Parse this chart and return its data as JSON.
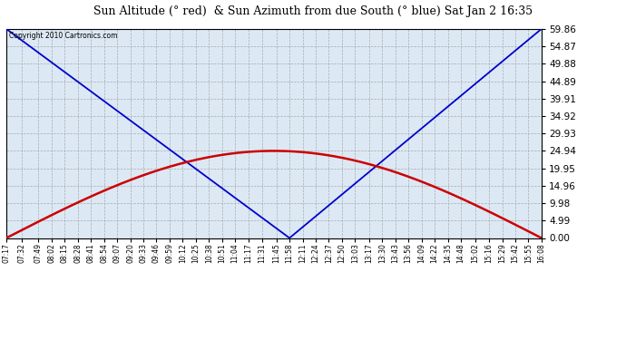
{
  "title": "Sun Altitude (° red)  & Sun Azimuth from due South (° blue) Sat Jan 2 16:35",
  "copyright_text": "Copyright 2010 Cartronics.com",
  "yticks": [
    0.0,
    4.99,
    9.98,
    14.96,
    19.95,
    24.94,
    29.93,
    34.92,
    39.91,
    44.89,
    49.88,
    54.87,
    59.86
  ],
  "ymin": 0.0,
  "ymax": 59.86,
  "background_color": "#ffffff",
  "grid_color": "#aaaaaa",
  "plot_bg": "#dce9f5",
  "blue_color": "#0000cc",
  "red_color": "#cc0000",
  "xtick_labels": [
    "07:17",
    "07:32",
    "07:49",
    "08:02",
    "08:15",
    "08:28",
    "08:41",
    "08:54",
    "09:07",
    "09:20",
    "09:33",
    "09:46",
    "09:59",
    "10:12",
    "10:25",
    "10:38",
    "10:51",
    "11:04",
    "11:17",
    "11:31",
    "11:45",
    "11:58",
    "12:11",
    "12:24",
    "12:37",
    "12:50",
    "13:03",
    "13:17",
    "13:30",
    "13:43",
    "13:56",
    "14:09",
    "14:22",
    "14:35",
    "14:48",
    "15:02",
    "15:16",
    "15:29",
    "15:42",
    "15:55",
    "16:08"
  ]
}
